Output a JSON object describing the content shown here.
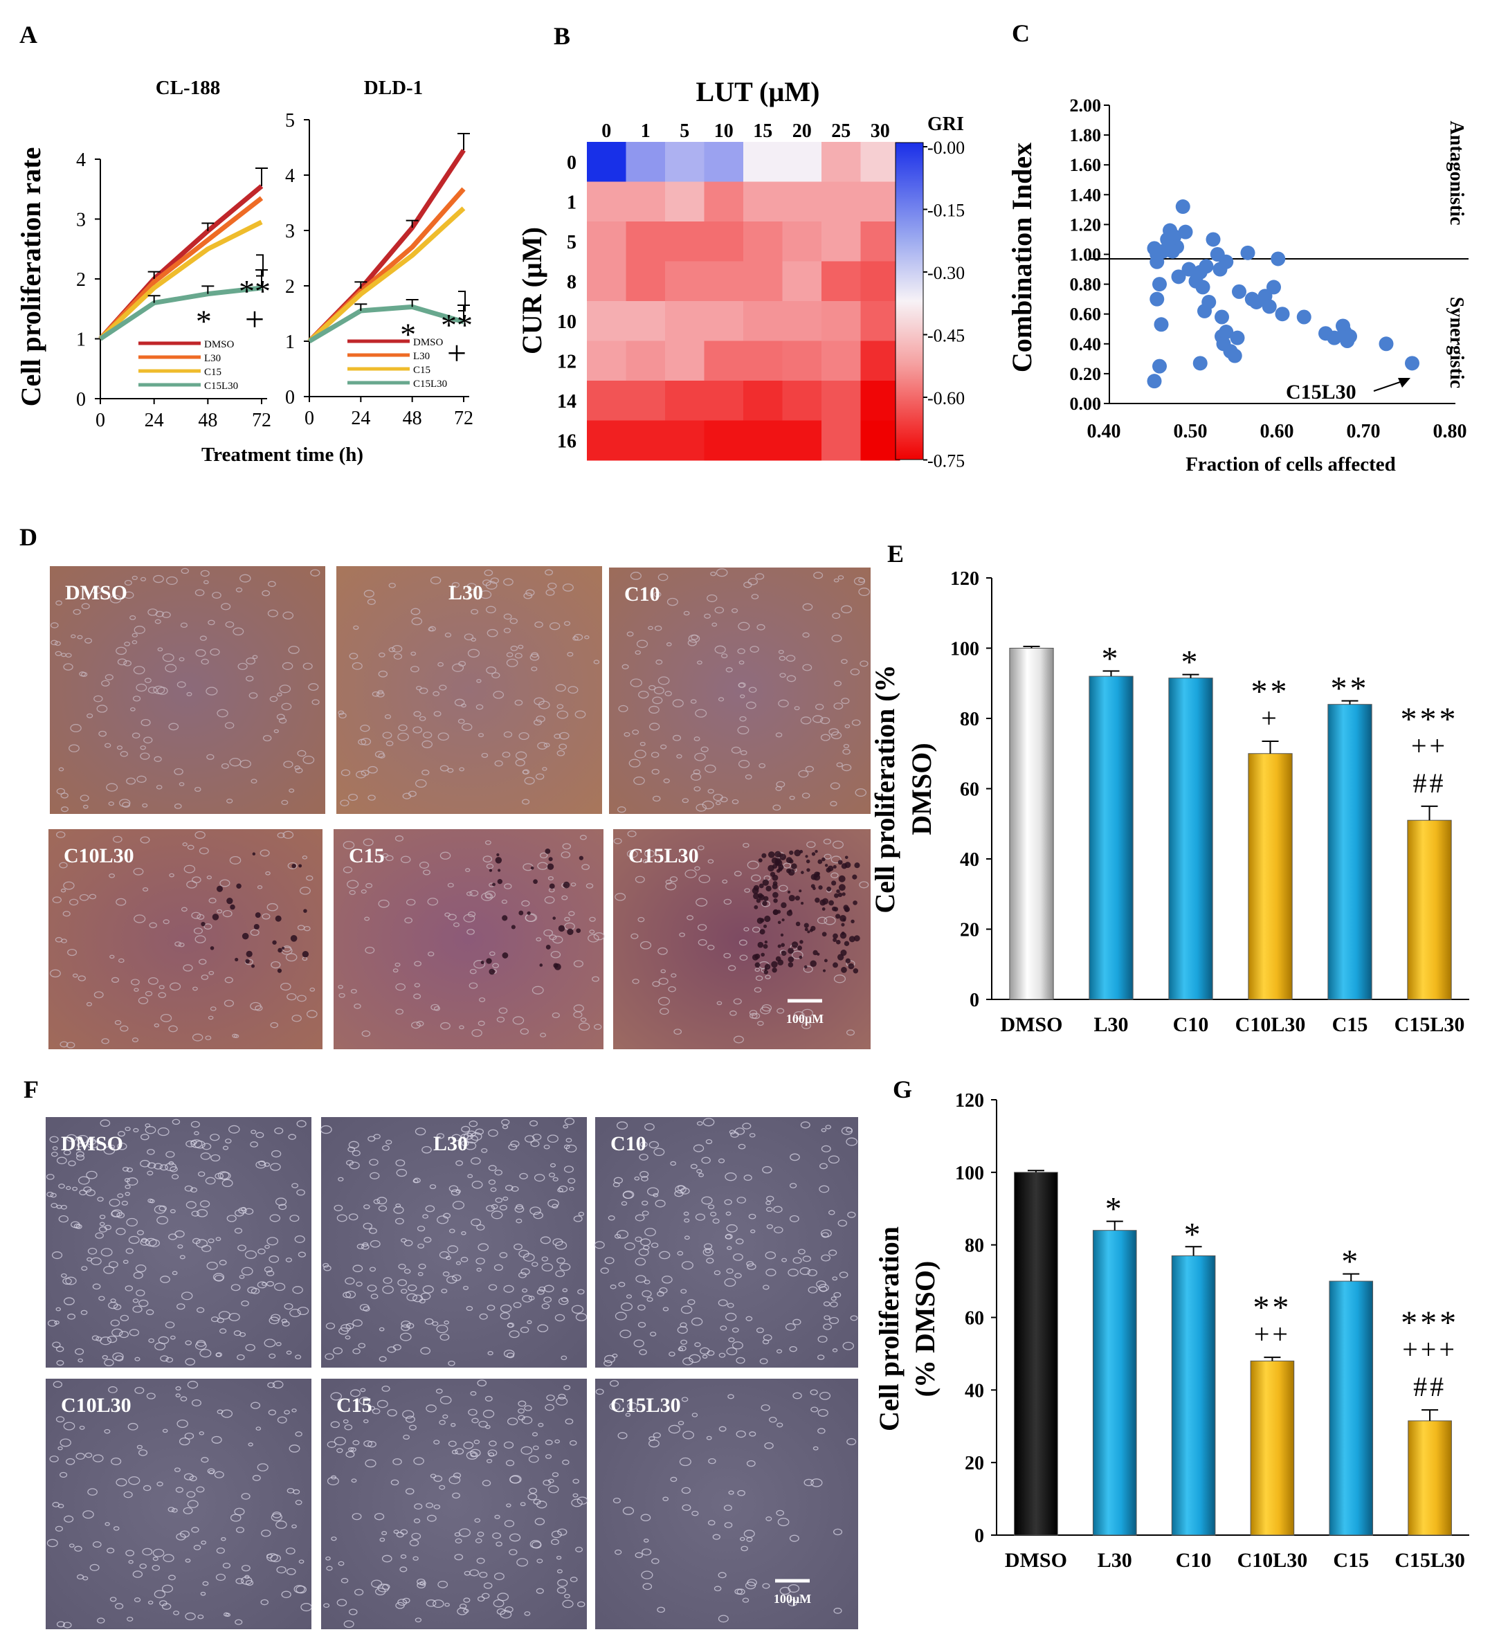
{
  "panels": {
    "A": "A",
    "B": "B",
    "C": "C",
    "D": "D",
    "E": "E",
    "F": "F",
    "G": "G"
  },
  "chart_data": [
    {
      "id": "A1",
      "type": "line",
      "title": "CL-188",
      "ylabel": "Cell proliferation rate",
      "x": [
        0,
        24,
        48,
        72
      ],
      "xticks": [
        "0",
        "24",
        "48",
        "72"
      ],
      "ylim": [
        0,
        4
      ],
      "yticks": [
        "0",
        "1",
        "2",
        "3",
        "4"
      ],
      "series": [
        {
          "name": "DMSO",
          "values": [
            1.0,
            2.0,
            2.8,
            3.55
          ],
          "color": "#c0262a"
        },
        {
          "name": "L30",
          "values": [
            1.0,
            1.95,
            2.65,
            3.35
          ],
          "color": "#ee6b25"
        },
        {
          "name": "C15",
          "values": [
            1.0,
            1.85,
            2.5,
            2.95
          ],
          "color": "#efbc2c"
        },
        {
          "name": "C15L30",
          "values": [
            1.0,
            1.6,
            1.75,
            1.85
          ],
          "color": "#68a88e"
        }
      ],
      "annotations": [
        "*",
        "**",
        "+"
      ]
    },
    {
      "id": "A2",
      "type": "line",
      "title": "DLD-1",
      "xlabel": "Treatment time (h)",
      "x": [
        0,
        24,
        48,
        72
      ],
      "xticks": [
        "0",
        "24",
        "48",
        "72"
      ],
      "ylim": [
        0,
        5
      ],
      "yticks": [
        "0",
        "1",
        "2",
        "3",
        "4",
        "5"
      ],
      "series": [
        {
          "name": "DMSO",
          "values": [
            1.0,
            1.95,
            3.05,
            4.45
          ],
          "color": "#c0262a"
        },
        {
          "name": "L30",
          "values": [
            1.0,
            1.9,
            2.7,
            3.75
          ],
          "color": "#ee6b25"
        },
        {
          "name": "C15",
          "values": [
            1.0,
            1.85,
            2.55,
            3.4
          ],
          "color": "#efbc2c"
        },
        {
          "name": "C15L30",
          "values": [
            1.0,
            1.55,
            1.62,
            1.35
          ],
          "color": "#68a88e"
        }
      ],
      "annotations": [
        "*",
        "**",
        "+"
      ]
    },
    {
      "id": "B",
      "type": "heatmap",
      "title": "LUT (µM)",
      "ylabel": "CUR (µM)",
      "x_categories": [
        "0",
        "1",
        "5",
        "10",
        "15",
        "20",
        "25",
        "30"
      ],
      "y_categories": [
        "0",
        "1",
        "5",
        "8",
        "10",
        "12",
        "14",
        "16"
      ],
      "colorbar_label": "GRI",
      "colorbar_ticks": [
        "-0.00",
        "-0.15",
        "-0.30",
        "-0.45",
        "-0.60",
        "-0.75"
      ],
      "values": [
        [
          0.0,
          -0.2,
          -0.25,
          -0.22,
          -0.37,
          -0.37,
          -0.48,
          -0.43
        ],
        [
          -0.5,
          -0.5,
          -0.47,
          -0.55,
          -0.5,
          -0.5,
          -0.5,
          -0.5
        ],
        [
          -0.52,
          -0.58,
          -0.58,
          -0.58,
          -0.55,
          -0.52,
          -0.5,
          -0.58
        ],
        [
          -0.52,
          -0.58,
          -0.55,
          -0.55,
          -0.55,
          -0.5,
          -0.6,
          -0.62
        ],
        [
          -0.48,
          -0.48,
          -0.5,
          -0.5,
          -0.52,
          -0.52,
          -0.53,
          -0.6
        ],
        [
          -0.5,
          -0.52,
          -0.5,
          -0.58,
          -0.58,
          -0.57,
          -0.55,
          -0.68
        ],
        [
          -0.62,
          -0.62,
          -0.65,
          -0.65,
          -0.68,
          -0.65,
          -0.62,
          -0.74
        ],
        [
          -0.7,
          -0.7,
          -0.7,
          -0.72,
          -0.72,
          -0.72,
          -0.62,
          -0.75
        ]
      ]
    },
    {
      "id": "C",
      "type": "scatter",
      "xlabel": "Fraction of cells affected",
      "ylabel": "Combination Index",
      "xlim": [
        0.4,
        0.8
      ],
      "ylim": [
        0.0,
        2.0
      ],
      "xticks": [
        "0.40",
        "0.50",
        "0.60",
        "0.70",
        "0.80"
      ],
      "yticks": [
        "0.00",
        "0.20",
        "0.40",
        "0.60",
        "0.80",
        "1.00",
        "1.20",
        "1.40",
        "1.60",
        "1.80",
        "2.00"
      ],
      "reference_line": 0.97,
      "region_labels": [
        "Antagonistic",
        "Synergistic"
      ],
      "arrow_label": "C15L30",
      "x": [
        0.452,
        0.455,
        0.458,
        0.455,
        0.46,
        0.462,
        0.458,
        0.452,
        0.455,
        0.467,
        0.47,
        0.472,
        0.475,
        0.478,
        0.473,
        0.48,
        0.485,
        0.488,
        0.492,
        0.5,
        0.505,
        0.51,
        0.512,
        0.508,
        0.515,
        0.52,
        0.525,
        0.528,
        0.53,
        0.532,
        0.535,
        0.54,
        0.545,
        0.548,
        0.535,
        0.53,
        0.55,
        0.56,
        0.565,
        0.57,
        0.58,
        0.585,
        0.59,
        0.595,
        0.6,
        0.625,
        0.65,
        0.66,
        0.67,
        0.672,
        0.675,
        0.678,
        0.72,
        0.75,
        0.505
      ],
      "y": [
        1.04,
        0.95,
        0.8,
        0.7,
        0.53,
        1.02,
        0.25,
        0.15,
        1.0,
        1.1,
        1.16,
        1.08,
        1.12,
        1.05,
        1.02,
        0.85,
        1.32,
        1.15,
        0.9,
        0.82,
        0.88,
        0.62,
        0.92,
        0.78,
        0.68,
        1.1,
        1.0,
        0.9,
        0.45,
        0.4,
        0.48,
        0.35,
        0.32,
        0.44,
        0.95,
        0.58,
        0.75,
        1.01,
        0.7,
        0.68,
        0.72,
        0.65,
        0.78,
        0.97,
        0.6,
        0.58,
        0.47,
        0.44,
        0.52,
        0.48,
        0.42,
        0.45,
        0.4,
        0.27,
        0.27
      ]
    },
    {
      "id": "E",
      "type": "bar",
      "ylabel": "Cell proliferation (% DMSO)",
      "categories": [
        "DMSO",
        "L30",
        "C10",
        "C10L30",
        "C15",
        "C15L30"
      ],
      "values": [
        100,
        92,
        91.5,
        70,
        84,
        51
      ],
      "errors": [
        0.5,
        1.5,
        1.0,
        3.5,
        1.0,
        4.0
      ],
      "colors": [
        "#dcdcdc",
        "#1aa4dc",
        "#1aa4dc",
        "#f2b81c",
        "#1aa4dc",
        "#f2b81c"
      ],
      "ylim": [
        0,
        120
      ],
      "yticks": [
        "0",
        "20",
        "40",
        "60",
        "80",
        "100",
        "120"
      ],
      "annotations": [
        [],
        [
          "*"
        ],
        [
          "*"
        ],
        [
          "**",
          "+"
        ],
        [
          "**"
        ],
        [
          "***",
          "++",
          "##"
        ]
      ]
    },
    {
      "id": "G",
      "type": "bar",
      "ylabel": "Cell proliferation (% DMSO)",
      "categories": [
        "DMSO",
        "L30",
        "C10",
        "C10L30",
        "C15",
        "C15L30"
      ],
      "values": [
        100,
        84,
        77,
        48,
        70,
        31.5
      ],
      "errors": [
        0.5,
        2.5,
        2.5,
        1.0,
        2.0,
        3.0
      ],
      "colors": [
        "#111111",
        "#1aa4dc",
        "#1aa4dc",
        "#f2b81c",
        "#1aa4dc",
        "#f2b81c"
      ],
      "ylim": [
        0,
        120
      ],
      "yticks": [
        "0",
        "20",
        "40",
        "60",
        "80",
        "100",
        "120"
      ],
      "annotations": [
        [],
        [
          "*"
        ],
        [
          "*"
        ],
        [
          "**",
          "++"
        ],
        [
          "*"
        ],
        [
          "***",
          "+++",
          "##"
        ]
      ]
    }
  ],
  "micrographs_D": {
    "labels": [
      "DMSO",
      "L30",
      "C10",
      "C10L30",
      "C15",
      "C15L30"
    ],
    "scale_bar": "100µM"
  },
  "micrographs_F": {
    "labels": [
      "DMSO",
      "L30",
      "C10",
      "C10L30",
      "C15",
      "C15L30"
    ],
    "scale_bar": "100µM"
  }
}
